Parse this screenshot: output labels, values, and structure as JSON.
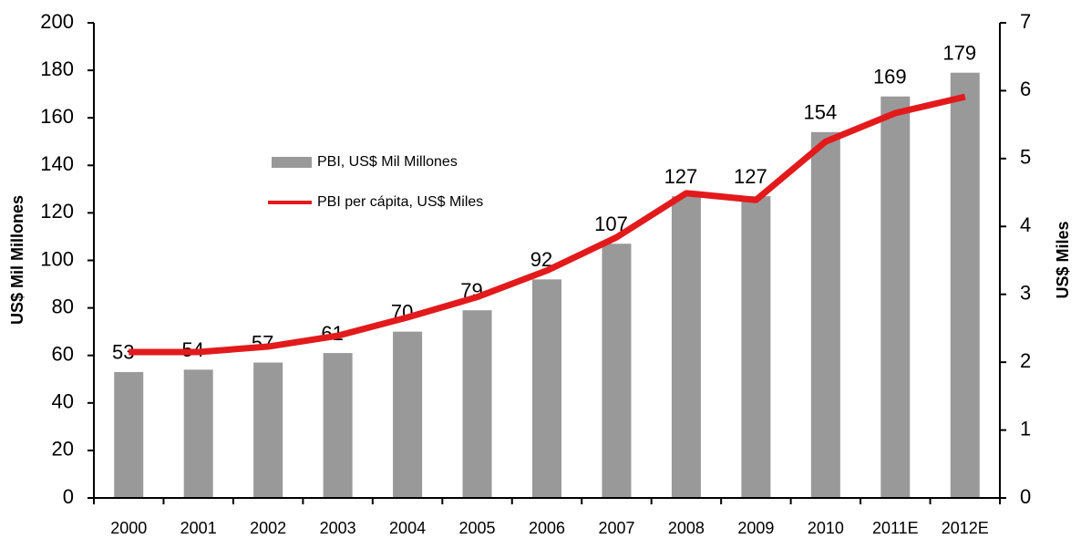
{
  "chart_data": {
    "type": "bar",
    "categories": [
      "2000",
      "2001",
      "2002",
      "2003",
      "2004",
      "2005",
      "2006",
      "2007",
      "2008",
      "2009",
      "2010",
      "2011E",
      "2012E"
    ],
    "series": [
      {
        "name": "PBI, US$ Mil Millones",
        "type": "bar",
        "color": "#999999",
        "values": [
          53,
          54,
          57,
          61,
          70,
          79,
          92,
          107,
          127,
          127,
          154,
          169,
          179
        ]
      },
      {
        "name": "PBI per cápita, US$ Miles",
        "type": "line",
        "axis": "y2",
        "color": "#e31a1c",
        "values": [
          2.15,
          2.15,
          2.23,
          2.39,
          2.66,
          2.96,
          3.35,
          3.84,
          4.49,
          4.39,
          5.25,
          5.67,
          5.91
        ]
      }
    ],
    "ylabel": "US$ Mil Millones",
    "y2label": "US$ Miles",
    "ylim": [
      0,
      200
    ],
    "yticks": [
      0,
      20,
      40,
      60,
      80,
      100,
      120,
      140,
      160,
      180,
      200
    ],
    "y2lim": [
      0,
      7
    ],
    "y2ticks": [
      0,
      1,
      2,
      3,
      4,
      5,
      6,
      7
    ],
    "legend": "upper left",
    "data_labels": true
  }
}
